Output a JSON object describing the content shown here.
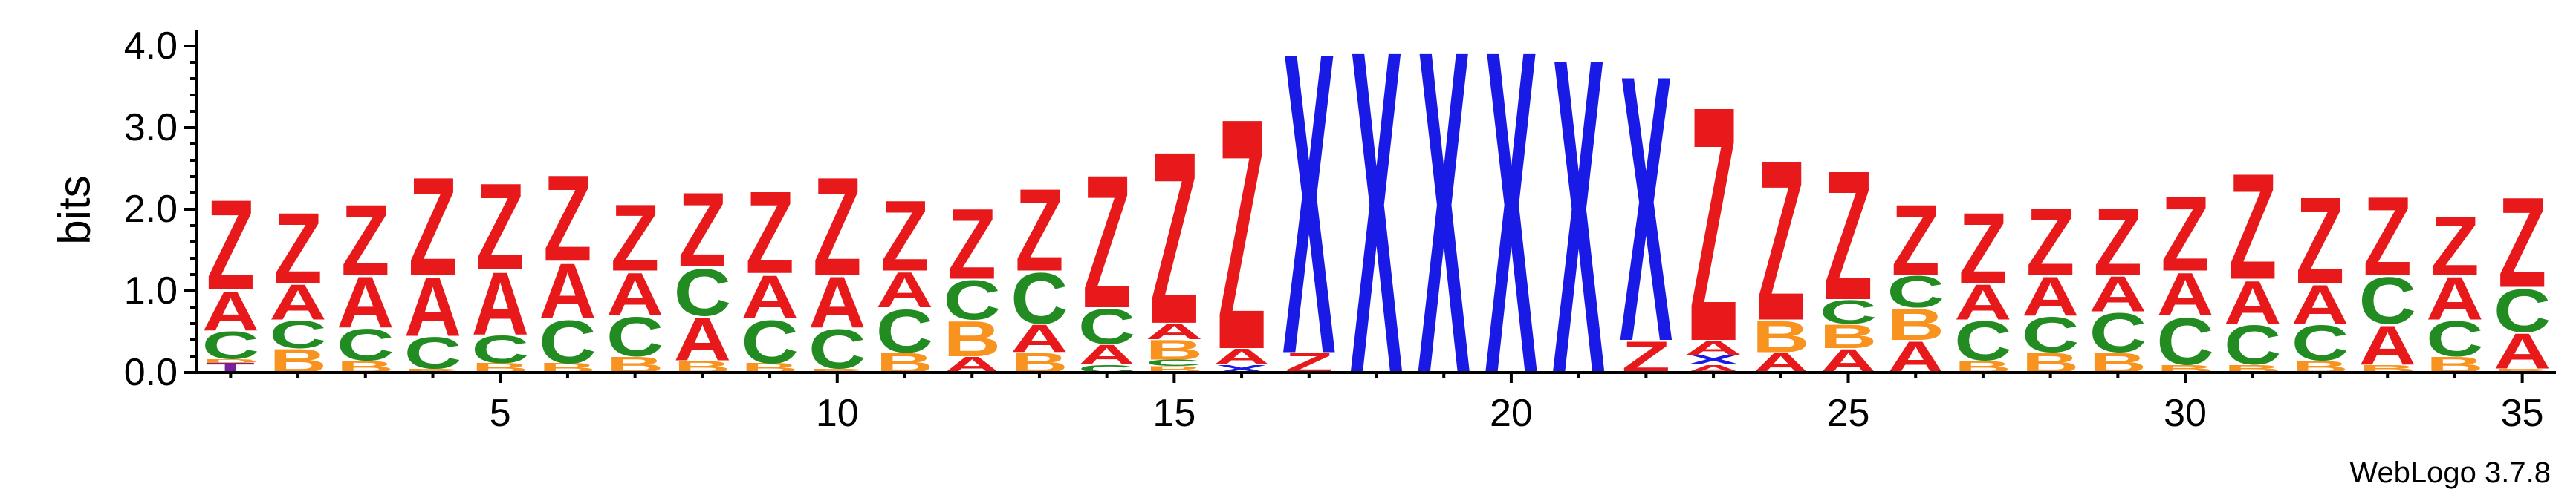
{
  "chart_data": {
    "type": "sequence-logo",
    "ylabel": "bits",
    "ylim": [
      0,
      4.2
    ],
    "yticks": [
      0.0,
      1.0,
      2.0,
      3.0,
      4.0
    ],
    "ytick_labels": [
      "0.0",
      "1.0",
      "2.0",
      "3.0",
      "4.0"
    ],
    "xlim": [
      0.5,
      35.5
    ],
    "xticks": [
      5,
      10,
      15,
      20,
      25,
      30,
      35
    ],
    "xtick_labels": [
      "5",
      "10",
      "15",
      "20",
      "25",
      "30",
      "35"
    ],
    "colors": {
      "Z": "#e8191b",
      "A": "#e8191b",
      "C": "#228b22",
      "B": "#f7931e",
      "X": "#1a1ae6",
      "T": "#7a1fa2"
    },
    "positions": [
      {
        "pos": 1,
        "stack": [
          {
            "letter": "T",
            "height": 0.12
          },
          {
            "letter": "B",
            "height": 0.05
          },
          {
            "letter": "C",
            "height": 0.35
          },
          {
            "letter": "A",
            "height": 0.5
          },
          {
            "letter": "Z",
            "height": 1.15
          }
        ]
      },
      {
        "pos": 2,
        "stack": [
          {
            "letter": "B",
            "height": 0.3
          },
          {
            "letter": "C",
            "height": 0.35
          },
          {
            "letter": "A",
            "height": 0.45
          },
          {
            "letter": "Z",
            "height": 0.9
          }
        ]
      },
      {
        "pos": 3,
        "stack": [
          {
            "letter": "B",
            "height": 0.15
          },
          {
            "letter": "C",
            "height": 0.4
          },
          {
            "letter": "A",
            "height": 0.65
          },
          {
            "letter": "Z",
            "height": 0.9
          }
        ]
      },
      {
        "pos": 4,
        "stack": [
          {
            "letter": "B",
            "height": 0.05
          },
          {
            "letter": "C",
            "height": 0.4
          },
          {
            "letter": "A",
            "height": 0.75
          },
          {
            "letter": "Z",
            "height": 1.25
          }
        ]
      },
      {
        "pos": 5,
        "stack": [
          {
            "letter": "B",
            "height": 0.12
          },
          {
            "letter": "C",
            "height": 0.35
          },
          {
            "letter": "A",
            "height": 0.8
          },
          {
            "letter": "Z",
            "height": 1.1
          }
        ]
      },
      {
        "pos": 6,
        "stack": [
          {
            "letter": "B",
            "height": 0.12
          },
          {
            "letter": "C",
            "height": 0.55
          },
          {
            "letter": "A",
            "height": 0.7
          },
          {
            "letter": "Z",
            "height": 1.1
          }
        ]
      },
      {
        "pos": 7,
        "stack": [
          {
            "letter": "B",
            "height": 0.2
          },
          {
            "letter": "C",
            "height": 0.5
          },
          {
            "letter": "A",
            "height": 0.55
          },
          {
            "letter": "Z",
            "height": 0.85
          }
        ]
      },
      {
        "pos": 8,
        "stack": [
          {
            "letter": "B",
            "height": 0.15
          },
          {
            "letter": "A",
            "height": 0.55
          },
          {
            "letter": "C",
            "height": 0.6
          },
          {
            "letter": "Z",
            "height": 0.95
          }
        ]
      },
      {
        "pos": 9,
        "stack": [
          {
            "letter": "B",
            "height": 0.12
          },
          {
            "letter": "C",
            "height": 0.55
          },
          {
            "letter": "A",
            "height": 0.55
          },
          {
            "letter": "Z",
            "height": 1.05
          }
        ]
      },
      {
        "pos": 10,
        "stack": [
          {
            "letter": "B",
            "height": 0.05
          },
          {
            "letter": "C",
            "height": 0.5
          },
          {
            "letter": "A",
            "height": 0.65
          },
          {
            "letter": "Z",
            "height": 1.25
          }
        ]
      },
      {
        "pos": 11,
        "stack": [
          {
            "letter": "B",
            "height": 0.25
          },
          {
            "letter": "C",
            "height": 0.55
          },
          {
            "letter": "A",
            "height": 0.45
          },
          {
            "letter": "Z",
            "height": 0.9
          }
        ]
      },
      {
        "pos": 12,
        "stack": [
          {
            "letter": "A",
            "height": 0.2
          },
          {
            "letter": "B",
            "height": 0.45
          },
          {
            "letter": "C",
            "height": 0.5
          },
          {
            "letter": "Z",
            "height": 0.9
          }
        ]
      },
      {
        "pos": 13,
        "stack": [
          {
            "letter": "B",
            "height": 0.25
          },
          {
            "letter": "A",
            "height": 0.35
          },
          {
            "letter": "C",
            "height": 0.65
          },
          {
            "letter": "Z",
            "height": 1.05
          }
        ]
      },
      {
        "pos": 14,
        "stack": [
          {
            "letter": "C",
            "height": 0.1
          },
          {
            "letter": "A",
            "height": 0.25
          },
          {
            "letter": "C",
            "height": 0.45
          },
          {
            "letter": "Z",
            "height": 1.7
          }
        ]
      },
      {
        "pos": 15,
        "stack": [
          {
            "letter": "B",
            "height": 0.08
          },
          {
            "letter": "C",
            "height": 0.08
          },
          {
            "letter": "B",
            "height": 0.25
          },
          {
            "letter": "A",
            "height": 0.2
          },
          {
            "letter": "Z",
            "height": 2.2
          }
        ]
      },
      {
        "pos": 16,
        "stack": [
          {
            "letter": "X",
            "height": 0.1
          },
          {
            "letter": "A",
            "height": 0.2
          },
          {
            "letter": "Z",
            "height": 2.95
          }
        ]
      },
      {
        "pos": 17,
        "stack": [
          {
            "letter": "Z",
            "height": 0.25
          },
          {
            "letter": "X",
            "height": 3.85
          }
        ]
      },
      {
        "pos": 18,
        "stack": [
          {
            "letter": "X",
            "height": 4.14
          }
        ]
      },
      {
        "pos": 19,
        "stack": [
          {
            "letter": "X",
            "height": 4.14
          }
        ]
      },
      {
        "pos": 20,
        "stack": [
          {
            "letter": "X",
            "height": 4.14
          }
        ]
      },
      {
        "pos": 21,
        "stack": [
          {
            "letter": "X",
            "height": 4.04
          }
        ]
      },
      {
        "pos": 22,
        "stack": [
          {
            "letter": "Z",
            "height": 0.4
          },
          {
            "letter": "X",
            "height": 3.4
          }
        ]
      },
      {
        "pos": 23,
        "stack": [
          {
            "letter": "A",
            "height": 0.1
          },
          {
            "letter": "X",
            "height": 0.12
          },
          {
            "letter": "A",
            "height": 0.18
          },
          {
            "letter": "Z",
            "height": 3.0
          }
        ]
      },
      {
        "pos": 24,
        "stack": [
          {
            "letter": "A",
            "height": 0.25
          },
          {
            "letter": "B",
            "height": 0.4
          },
          {
            "letter": "Z",
            "height": 2.05
          }
        ]
      },
      {
        "pos": 25,
        "stack": [
          {
            "letter": "A",
            "height": 0.3
          },
          {
            "letter": "B",
            "height": 0.3
          },
          {
            "letter": "C",
            "height": 0.3
          },
          {
            "letter": "Z",
            "height": 1.65
          }
        ]
      },
      {
        "pos": 26,
        "stack": [
          {
            "letter": "A",
            "height": 0.4
          },
          {
            "letter": "B",
            "height": 0.4
          },
          {
            "letter": "C",
            "height": 0.4
          },
          {
            "letter": "Z",
            "height": 0.9
          }
        ]
      },
      {
        "pos": 27,
        "stack": [
          {
            "letter": "B",
            "height": 0.15
          },
          {
            "letter": "C",
            "height": 0.5
          },
          {
            "letter": "A",
            "height": 0.45
          },
          {
            "letter": "Z",
            "height": 0.9
          }
        ]
      },
      {
        "pos": 28,
        "stack": [
          {
            "letter": "B",
            "height": 0.25
          },
          {
            "letter": "C",
            "height": 0.45
          },
          {
            "letter": "A",
            "height": 0.5
          },
          {
            "letter": "Z",
            "height": 0.85
          }
        ]
      },
      {
        "pos": 29,
        "stack": [
          {
            "letter": "B",
            "height": 0.25
          },
          {
            "letter": "C",
            "height": 0.5
          },
          {
            "letter": "A",
            "height": 0.45
          },
          {
            "letter": "Z",
            "height": 0.85
          }
        ]
      },
      {
        "pos": 30,
        "stack": [
          {
            "letter": "B",
            "height": 0.1
          },
          {
            "letter": "C",
            "height": 0.6
          },
          {
            "letter": "A",
            "height": 0.55
          },
          {
            "letter": "Z",
            "height": 0.95
          }
        ]
      },
      {
        "pos": 31,
        "stack": [
          {
            "letter": "B",
            "height": 0.1
          },
          {
            "letter": "C",
            "height": 0.5
          },
          {
            "letter": "A",
            "height": 0.55
          },
          {
            "letter": "Z",
            "height": 1.35
          }
        ]
      },
      {
        "pos": 32,
        "stack": [
          {
            "letter": "B",
            "height": 0.15
          },
          {
            "letter": "C",
            "height": 0.45
          },
          {
            "letter": "A",
            "height": 0.5
          },
          {
            "letter": "Z",
            "height": 1.1
          }
        ]
      },
      {
        "pos": 33,
        "stack": [
          {
            "letter": "B",
            "height": 0.1
          },
          {
            "letter": "A",
            "height": 0.5
          },
          {
            "letter": "C",
            "height": 0.6
          },
          {
            "letter": "Z",
            "height": 1.0
          }
        ]
      },
      {
        "pos": 34,
        "stack": [
          {
            "letter": "B",
            "height": 0.2
          },
          {
            "letter": "C",
            "height": 0.45
          },
          {
            "letter": "A",
            "height": 0.55
          },
          {
            "letter": "Z",
            "height": 0.75
          }
        ]
      },
      {
        "pos": 35,
        "stack": [
          {
            "letter": "B",
            "height": 0.05
          },
          {
            "letter": "A",
            "height": 0.45
          },
          {
            "letter": "C",
            "height": 0.55
          },
          {
            "letter": "Z",
            "height": 1.15
          }
        ]
      }
    ]
  },
  "credit": "WebLogo 3.7.8"
}
